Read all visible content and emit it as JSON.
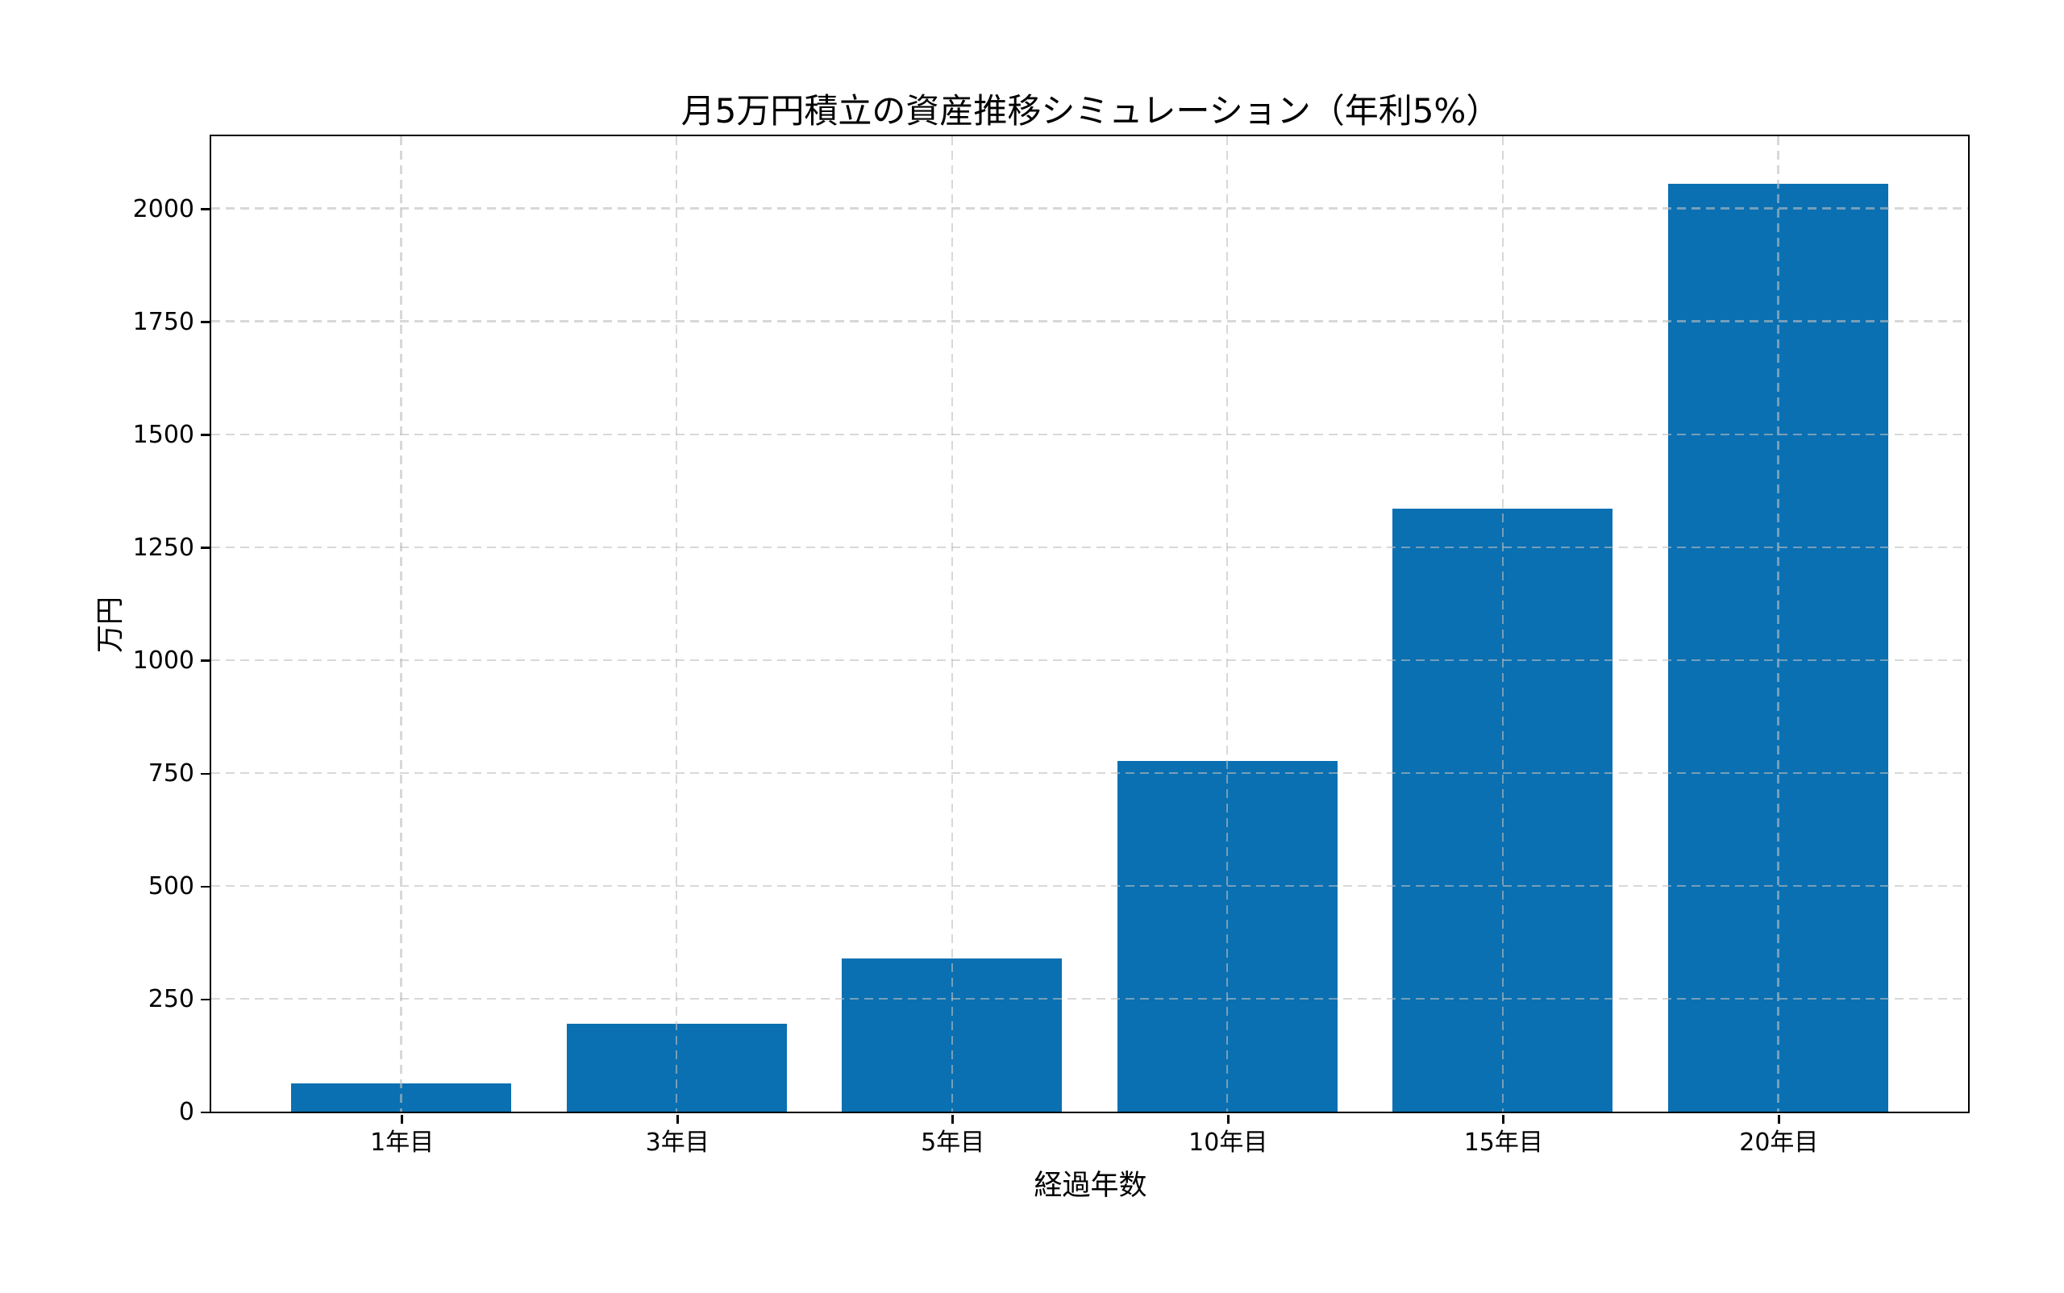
{
  "chart_data": {
    "type": "bar",
    "title": "月5万円積立の資産推移シミュレーション（年利5%）",
    "xlabel": "経過年数",
    "ylabel": "万円",
    "categories": [
      "1年目",
      "3年目",
      "5年目",
      "10年目",
      "15年目",
      "20年目"
    ],
    "values": [
      62,
      194,
      340,
      776,
      1336,
      2055
    ],
    "yticks": [
      0,
      250,
      500,
      750,
      1000,
      1250,
      1500,
      1750,
      2000
    ],
    "ylim": [
      0,
      2160
    ],
    "xlim": [
      -0.69,
      5.69
    ],
    "bar_width_fraction": 0.8,
    "bar_color": "#0a70b2",
    "grid_color": "rgba(190,190,190,0.6)",
    "grid_style": "dashed",
    "grid_above_bars": true,
    "frame": "full-box",
    "legend": "none"
  }
}
